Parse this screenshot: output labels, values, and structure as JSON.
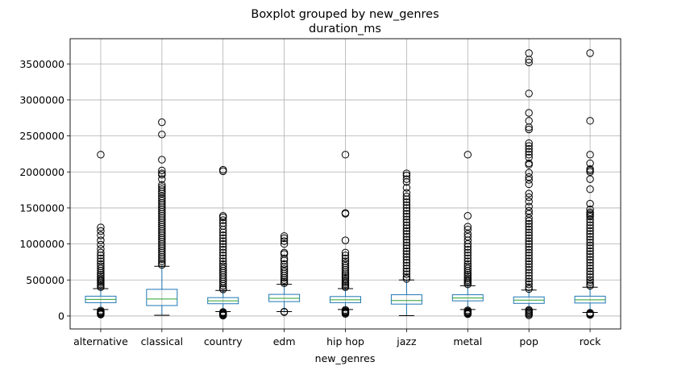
{
  "chart_data": {
    "type": "boxplot",
    "suptitle": "Boxplot grouped by new_genres",
    "title": "duration_ms",
    "xlabel": "new_genres",
    "ylabel": "",
    "ylim": [
      -180000,
      3850000
    ],
    "yticks": [
      0,
      500000,
      1000000,
      1500000,
      2000000,
      2500000,
      3000000,
      3500000
    ],
    "ytick_labels": [
      "0",
      "500000",
      "1000000",
      "1500000",
      "2000000",
      "2500000",
      "3000000",
      "3500000"
    ],
    "grid": true,
    "categories": [
      "alternative",
      "classical",
      "country",
      "edm",
      "hip hop",
      "jazz",
      "metal",
      "pop",
      "rock"
    ],
    "colors": {
      "box": "#1f77b4",
      "median": "#2ca02c",
      "grid": "#b0b0b0",
      "outlier": "#000000"
    },
    "boxes": [
      {
        "category": "alternative",
        "whisker_low": 90000,
        "q1": 185000,
        "median": 230000,
        "q3": 275000,
        "whisker_high": 380000,
        "outliers": [
          2240000,
          1230000,
          1180000,
          1120000,
          1050000,
          990000,
          930000,
          880000,
          840000,
          800000,
          760000,
          720000,
          690000,
          660000,
          630000,
          600000,
          575000,
          550000,
          525000,
          500000,
          480000,
          460000,
          440000,
          420000,
          400000,
          75000,
          60000,
          50000,
          40000,
          30000,
          20000
        ]
      },
      {
        "category": "classical",
        "whisker_low": 10000,
        "q1": 145000,
        "median": 235000,
        "q3": 370000,
        "whisker_high": 690000,
        "outliers": [
          2690000,
          2520000,
          2170000,
          2020000,
          1980000,
          1960000,
          1900000,
          1820000,
          1790000,
          1760000,
          1730000,
          1700000,
          1660000,
          1630000,
          1600000,
          1570000,
          1540000,
          1510000,
          1480000,
          1450000,
          1420000,
          1390000,
          1360000,
          1330000,
          1300000,
          1270000,
          1240000,
          1210000,
          1180000,
          1150000,
          1120000,
          1090000,
          1060000,
          1030000,
          1000000,
          970000,
          940000,
          910000,
          880000,
          850000,
          820000,
          790000,
          760000,
          730000,
          710000
        ]
      },
      {
        "category": "country",
        "whisker_low": 60000,
        "q1": 170000,
        "median": 210000,
        "q3": 255000,
        "whisker_high": 355000,
        "outliers": [
          2030000,
          2010000,
          1390000,
          1370000,
          1330000,
          1290000,
          1250000,
          1200000,
          1160000,
          1120000,
          1080000,
          1040000,
          1000000,
          960000,
          920000,
          880000,
          840000,
          800000,
          760000,
          720000,
          690000,
          660000,
          630000,
          600000,
          570000,
          540000,
          510000,
          480000,
          450000,
          420000,
          390000,
          370000,
          55000,
          45000,
          35000,
          25000,
          15000,
          5000
        ]
      },
      {
        "category": "edm",
        "whisker_low": 60000,
        "q1": 200000,
        "median": 245000,
        "q3": 300000,
        "whisker_high": 440000,
        "outliers": [
          1110000,
          1080000,
          1040000,
          1000000,
          880000,
          860000,
          800000,
          770000,
          720000,
          680000,
          650000,
          620000,
          590000,
          560000,
          530000,
          500000,
          475000,
          455000,
          60000,
          55000
        ]
      },
      {
        "category": "hip hop",
        "whisker_low": 90000,
        "q1": 185000,
        "median": 225000,
        "q3": 270000,
        "whisker_high": 380000,
        "outliers": [
          2240000,
          1430000,
          1420000,
          1050000,
          880000,
          840000,
          800000,
          760000,
          730000,
          700000,
          670000,
          640000,
          610000,
          580000,
          555000,
          530000,
          505000,
          480000,
          460000,
          440000,
          420000,
          400000,
          85000,
          70000,
          60000,
          50000,
          40000,
          30000
        ]
      },
      {
        "category": "jazz",
        "whisker_low": 5000,
        "q1": 165000,
        "median": 215000,
        "q3": 295000,
        "whisker_high": 500000,
        "outliers": [
          1980000,
          1950000,
          1900000,
          1860000,
          1780000,
          1710000,
          1660000,
          1620000,
          1580000,
          1540000,
          1500000,
          1460000,
          1420000,
          1380000,
          1340000,
          1300000,
          1260000,
          1220000,
          1180000,
          1140000,
          1100000,
          1060000,
          1020000,
          980000,
          940000,
          900000,
          860000,
          820000,
          780000,
          740000,
          700000,
          660000,
          620000,
          580000,
          540000,
          515000
        ]
      },
      {
        "category": "metal",
        "whisker_low": 90000,
        "q1": 210000,
        "median": 250000,
        "q3": 295000,
        "whisker_high": 420000,
        "outliers": [
          2240000,
          1390000,
          1240000,
          1200000,
          1140000,
          1100000,
          1050000,
          1000000,
          960000,
          920000,
          880000,
          840000,
          800000,
          760000,
          720000,
          690000,
          660000,
          630000,
          600000,
          575000,
          550000,
          525000,
          500000,
          480000,
          460000,
          440000,
          80000,
          65000,
          55000,
          45000,
          35000,
          25000
        ]
      },
      {
        "category": "pop",
        "whisker_low": 90000,
        "q1": 175000,
        "median": 220000,
        "q3": 265000,
        "whisker_high": 360000,
        "outliers": [
          3650000,
          3560000,
          3520000,
          3090000,
          2820000,
          2710000,
          2620000,
          2590000,
          2400000,
          2360000,
          2320000,
          2280000,
          2240000,
          2200000,
          2120000,
          2100000,
          1990000,
          1930000,
          1890000,
          1830000,
          1700000,
          1650000,
          1590000,
          1520000,
          1460000,
          1420000,
          1360000,
          1320000,
          1280000,
          1240000,
          1200000,
          1160000,
          1120000,
          1080000,
          1040000,
          1000000,
          960000,
          920000,
          880000,
          840000,
          800000,
          760000,
          720000,
          680000,
          640000,
          600000,
          560000,
          520000,
          480000,
          440000,
          400000,
          375000,
          85000,
          70000,
          55000,
          40000,
          25000,
          10000
        ]
      },
      {
        "category": "rock",
        "whisker_low": 50000,
        "q1": 180000,
        "median": 225000,
        "q3": 275000,
        "whisker_high": 400000,
        "outliers": [
          3650000,
          2710000,
          2240000,
          2120000,
          2040000,
          2020000,
          2000000,
          1900000,
          1760000,
          1560000,
          1480000,
          1440000,
          1420000,
          1400000,
          1380000,
          1340000,
          1300000,
          1260000,
          1220000,
          1180000,
          1140000,
          1100000,
          1060000,
          1020000,
          980000,
          940000,
          900000,
          860000,
          820000,
          780000,
          740000,
          700000,
          660000,
          620000,
          580000,
          540000,
          500000,
          470000,
          440000,
          420000,
          45000,
          35000,
          25000,
          15000
        ]
      }
    ]
  }
}
